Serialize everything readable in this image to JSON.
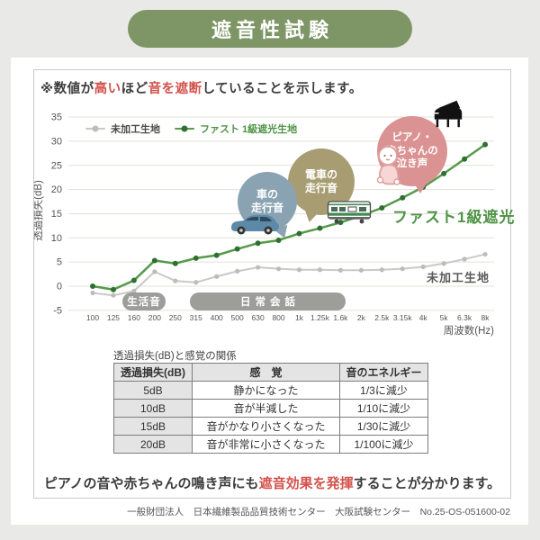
{
  "header": {
    "title": "遮音性試験"
  },
  "note": {
    "parts": [
      "※数値が",
      "高い",
      "ほど",
      "音を遮断",
      "していることを示します。"
    ]
  },
  "chart_data": {
    "type": "line",
    "xlabel": "周波数(Hz)",
    "ylabel": "透過損失(dB)",
    "ylim": [
      -5,
      35
    ],
    "yticks": [
      -5,
      0,
      5,
      10,
      15,
      20,
      25,
      30,
      35
    ],
    "grid": true,
    "legend_position": "top-left",
    "categories": [
      "100",
      "125",
      "160",
      "200",
      "250",
      "315",
      "400",
      "500",
      "630",
      "800",
      "1k",
      "1.25k",
      "1.6k",
      "2k",
      "2.5k",
      "3.15k",
      "4k",
      "5k",
      "6.3k",
      "8k"
    ],
    "series": [
      {
        "name": "未加工生地",
        "color": "#c9c9c7",
        "marker_color": "#bcbcba",
        "line_width": 2,
        "marker_radius": 2.6,
        "values": [
          -1.4,
          -1.9,
          -1,
          3,
          1.1,
          0.8,
          2,
          3.1,
          3.9,
          3.6,
          3.4,
          3.4,
          3.3,
          3.3,
          3.4,
          3.6,
          4,
          4.7,
          5.6,
          6.6
        ]
      },
      {
        "name": "ファスト 1級遮光生地",
        "color": "#579a49",
        "marker_color": "#2f7030",
        "line_width": 2.5,
        "marker_radius": 3,
        "values": [
          0,
          -0.7,
          1.2,
          5.3,
          4.7,
          5.8,
          6.4,
          7.7,
          8.9,
          9.5,
          10.9,
          12,
          13.2,
          14.6,
          16.2,
          18.3,
          20.5,
          23.3,
          26.3,
          29.3
        ]
      }
    ],
    "annotations": [
      {
        "text": "ファスト1級遮光"
      },
      {
        "text": "未加工生地"
      }
    ],
    "sound_ranges": [
      {
        "label": "生活音"
      },
      {
        "label": "日常会話"
      }
    ],
    "bubbles": [
      {
        "name": "car",
        "lines": [
          "車の",
          "走行音"
        ]
      },
      {
        "name": "train",
        "lines": [
          "電車の",
          "走行音"
        ]
      },
      {
        "name": "piano-baby",
        "lines": [
          "ピアノ・",
          "赤ちゃんの",
          "泣き声"
        ]
      }
    ]
  },
  "table": {
    "title": "透過損失(dB)と感覚の関係",
    "headers": [
      "透過損失(dB)",
      "感　覚",
      "音のエネルギー"
    ],
    "rows": [
      [
        "5dB",
        "静かになった",
        "1/3に減少"
      ],
      [
        "10dB",
        "音が半減した",
        "1/10に減少"
      ],
      [
        "15dB",
        "音がかなり小さくなった",
        "1/30に減少"
      ],
      [
        "20dB",
        "音が非常に小さくなった",
        "1/100に減少"
      ]
    ]
  },
  "conclusion": {
    "parts": [
      "ピアノの音や赤ちゃんの鳴き声にも",
      "遮音効果を発揮",
      "することが分かります。"
    ]
  },
  "footer": {
    "text": "一般財団法人　日本繊維製品品質技術センター　大阪試験センター　No.25-OS-051600-02"
  },
  "colors": {
    "header_green": "#7e9565",
    "accent_green": "#4f9345",
    "red": "#d3524c",
    "bubble_blue": "#8aa3b3",
    "bubble_khaki": "#a89d72",
    "bubble_pink": "#db9292",
    "pill_gray": "#9d9d99",
    "text_dark": "#3c3c3c",
    "line_gray": "#c9c9c7"
  }
}
